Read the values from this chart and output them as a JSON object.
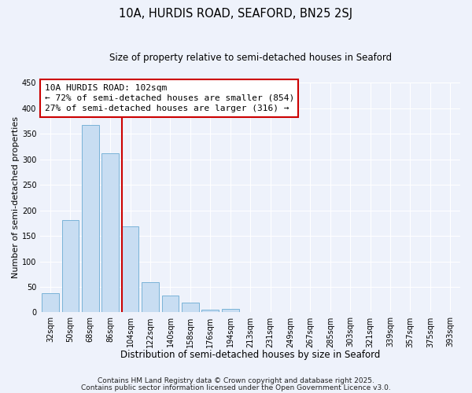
{
  "title": "10A, HURDIS ROAD, SEAFORD, BN25 2SJ",
  "subtitle": "Size of property relative to semi-detached houses in Seaford",
  "xlabel": "Distribution of semi-detached houses by size in Seaford",
  "ylabel": "Number of semi-detached properties",
  "categories": [
    "32sqm",
    "50sqm",
    "68sqm",
    "86sqm",
    "104sqm",
    "122sqm",
    "140sqm",
    "158sqm",
    "176sqm",
    "194sqm",
    "213sqm",
    "231sqm",
    "249sqm",
    "267sqm",
    "285sqm",
    "303sqm",
    "321sqm",
    "339sqm",
    "357sqm",
    "375sqm",
    "393sqm"
  ],
  "values": [
    38,
    181,
    367,
    312,
    168,
    60,
    33,
    19,
    5,
    7,
    0,
    0,
    0,
    0,
    0,
    0,
    0,
    0,
    0,
    0,
    0
  ],
  "bar_color": "#c8ddf2",
  "bar_edge_color": "#7ab3d8",
  "vline_color": "#cc0000",
  "vline_x_index": 4,
  "annotation_title": "10A HURDIS ROAD: 102sqm",
  "annotation_line1": "← 72% of semi-detached houses are smaller (854)",
  "annotation_line2": "27% of semi-detached houses are larger (316) →",
  "annotation_box_facecolor": "#ffffff",
  "annotation_box_edgecolor": "#cc0000",
  "ylim": [
    0,
    450
  ],
  "yticks": [
    0,
    50,
    100,
    150,
    200,
    250,
    300,
    350,
    400,
    450
  ],
  "footnote1": "Contains HM Land Registry data © Crown copyright and database right 2025.",
  "footnote2": "Contains public sector information licensed under the Open Government Licence v3.0.",
  "background_color": "#eef2fb",
  "grid_color": "#ffffff",
  "title_fontsize": 10.5,
  "subtitle_fontsize": 8.5,
  "xlabel_fontsize": 8.5,
  "ylabel_fontsize": 8,
  "tick_fontsize": 7,
  "annotation_fontsize": 8,
  "footnote_fontsize": 6.5
}
